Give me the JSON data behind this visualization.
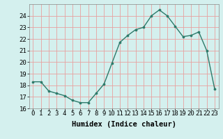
{
  "x": [
    0,
    1,
    2,
    3,
    4,
    5,
    6,
    7,
    8,
    9,
    10,
    11,
    12,
    13,
    14,
    15,
    16,
    17,
    18,
    19,
    20,
    21,
    22,
    23
  ],
  "y": [
    18.3,
    18.3,
    17.5,
    17.3,
    17.1,
    16.7,
    16.5,
    16.5,
    17.3,
    18.1,
    19.9,
    21.7,
    22.3,
    22.8,
    23.0,
    24.0,
    24.5,
    24.0,
    23.1,
    22.2,
    22.3,
    22.6,
    21.0,
    17.7
  ],
  "xlabel": "Humidex (Indice chaleur)",
  "line_color": "#2d7a6a",
  "marker_color": "#2d7a6a",
  "bg_color": "#d4f0ee",
  "grid_color": "#e8a0a0",
  "ylim": [
    16,
    25
  ],
  "xlim": [
    -0.5,
    23.5
  ],
  "yticks": [
    16,
    17,
    18,
    19,
    20,
    21,
    22,
    23,
    24
  ],
  "xticks": [
    0,
    1,
    2,
    3,
    4,
    5,
    6,
    7,
    8,
    9,
    10,
    11,
    12,
    13,
    14,
    15,
    16,
    17,
    18,
    19,
    20,
    21,
    22,
    23
  ],
  "xlabel_fontsize": 7.5,
  "tick_fontsize": 6.5
}
